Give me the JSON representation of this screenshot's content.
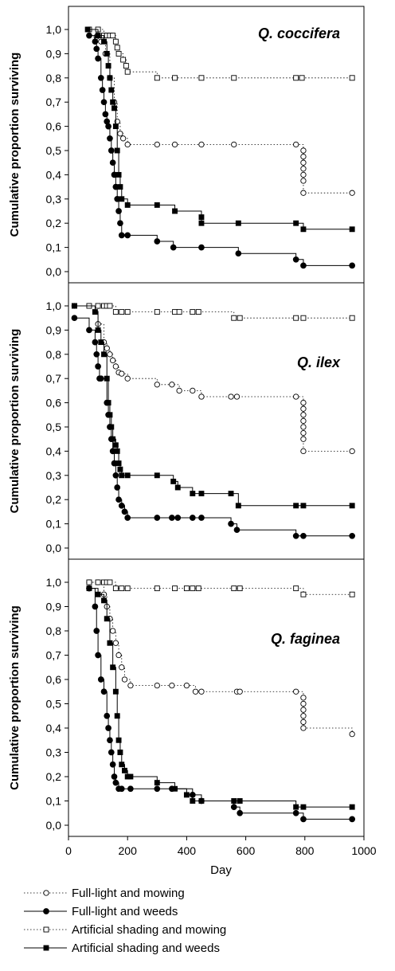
{
  "chart_data": {
    "type": "line",
    "xlabel": "Day",
    "ylabel": "Cumulative proportion surviving",
    "xlim": [
      0,
      1000
    ],
    "ylim": [
      -0.05,
      1.05
    ],
    "x_ticks": [
      "0",
      "200",
      "400",
      "600",
      "800",
      "1000"
    ],
    "y_ticks": [
      "0,0",
      "0,1",
      "0,2",
      "0,3",
      "0,4",
      "0,5",
      "0,6",
      "0,7",
      "0,8",
      "0,9",
      "1,0"
    ],
    "grid": false,
    "legend_position": "bottom",
    "legend": [
      {
        "label": "Full-light and mowing",
        "line": "dotted",
        "marker": "open-circle"
      },
      {
        "label": "Full-light and weeds",
        "line": "solid",
        "marker": "filled-circle"
      },
      {
        "label": "Artificial shading and mowing",
        "line": "dotted",
        "marker": "open-square"
      },
      {
        "label": "Artificial shading and weeds",
        "line": "solid",
        "marker": "filled-square"
      }
    ],
    "panels": [
      {
        "title": "Q. coccifera",
        "series": [
          {
            "name": "Full-light and mowing",
            "style": "dotted",
            "marker": "open-circle",
            "x": [
              70,
              95,
              110,
              125,
              140,
              155,
              165,
              175,
              185,
              200,
              300,
              360,
              450,
              560,
              770,
              795,
              795,
              795,
              795,
              795,
              795,
              795,
              960
            ],
            "y": [
              1.0,
              0.97,
              0.95,
              0.9,
              0.8,
              0.7,
              0.62,
              0.57,
              0.55,
              0.525,
              0.525,
              0.525,
              0.525,
              0.525,
              0.525,
              0.5,
              0.475,
              0.45,
              0.425,
              0.4,
              0.375,
              0.325,
              0.325
            ]
          },
          {
            "name": "Full-light and weeds",
            "style": "solid",
            "marker": "filled-circle",
            "x": [
              70,
              90,
              95,
              100,
              110,
              115,
              120,
              125,
              130,
              135,
              140,
              145,
              150,
              155,
              160,
              165,
              170,
              175,
              180,
              200,
              300,
              355,
              450,
              575,
              770,
              795,
              960
            ],
            "y": [
              0.975,
              0.95,
              0.92,
              0.88,
              0.8,
              0.75,
              0.7,
              0.65,
              0.62,
              0.6,
              0.55,
              0.5,
              0.45,
              0.4,
              0.35,
              0.3,
              0.25,
              0.2,
              0.15,
              0.15,
              0.125,
              0.1,
              0.1,
              0.075,
              0.05,
              0.025,
              0.025
            ]
          },
          {
            "name": "Artificial shading and mowing",
            "style": "dotted",
            "marker": "open-square",
            "x": [
              70,
              100,
              120,
              130,
              140,
              150,
              160,
              165,
              170,
              185,
              195,
              200,
              300,
              360,
              450,
              560,
              770,
              790,
              960
            ],
            "y": [
              1.0,
              1.0,
              0.975,
              0.975,
              0.975,
              0.975,
              0.95,
              0.925,
              0.9,
              0.875,
              0.85,
              0.825,
              0.8,
              0.8,
              0.8,
              0.8,
              0.8,
              0.8,
              0.8
            ]
          },
          {
            "name": "Artificial shading and weeds",
            "style": "solid",
            "marker": "filled-square",
            "x": [
              65,
              100,
              120,
              130,
              135,
              140,
              145,
              150,
              155,
              160,
              165,
              170,
              175,
              180,
              200,
              300,
              360,
              450,
              450,
              575,
              770,
              795,
              960
            ],
            "y": [
              1.0,
              0.975,
              0.95,
              0.9,
              0.85,
              0.8,
              0.75,
              0.7,
              0.675,
              0.6,
              0.5,
              0.4,
              0.35,
              0.3,
              0.275,
              0.275,
              0.25,
              0.225,
              0.2,
              0.2,
              0.2,
              0.175,
              0.175
            ]
          }
        ]
      },
      {
        "title": "Q. ilex",
        "series": [
          {
            "name": "Full-light and mowing",
            "style": "dotted",
            "marker": "open-circle",
            "x": [
              20,
              100,
              120,
              130,
              140,
              150,
              160,
              170,
              180,
              200,
              300,
              350,
              375,
              420,
              450,
              550,
              570,
              770,
              795,
              795,
              795,
              795,
              795,
              795,
              795,
              795,
              960
            ],
            "y": [
              1.0,
              0.925,
              0.85,
              0.825,
              0.8,
              0.775,
              0.75,
              0.725,
              0.72,
              0.7,
              0.675,
              0.675,
              0.65,
              0.65,
              0.625,
              0.625,
              0.625,
              0.625,
              0.6,
              0.575,
              0.55,
              0.525,
              0.5,
              0.475,
              0.45,
              0.4,
              0.4
            ]
          },
          {
            "name": "Full-light and weeds",
            "style": "solid",
            "marker": "filled-circle",
            "x": [
              20,
              70,
              90,
              95,
              100,
              105,
              110,
              130,
              135,
              140,
              145,
              150,
              155,
              160,
              165,
              170,
              180,
              190,
              200,
              300,
              350,
              370,
              420,
              450,
              550,
              570,
              770,
              795,
              960
            ],
            "y": [
              0.95,
              0.9,
              0.85,
              0.8,
              0.75,
              0.7,
              0.7,
              0.6,
              0.55,
              0.5,
              0.45,
              0.4,
              0.35,
              0.3,
              0.25,
              0.2,
              0.175,
              0.15,
              0.125,
              0.125,
              0.125,
              0.125,
              0.125,
              0.125,
              0.1,
              0.075,
              0.05,
              0.05,
              0.05
            ]
          },
          {
            "name": "Artificial shading and mowing",
            "style": "dotted",
            "marker": "open-square",
            "x": [
              20,
              70,
              100,
              120,
              130,
              140,
              160,
              180,
              200,
              300,
              360,
              375,
              420,
              440,
              560,
              580,
              770,
              795,
              960
            ],
            "y": [
              1.0,
              1.0,
              1.0,
              1.0,
              1.0,
              1.0,
              0.975,
              0.975,
              0.975,
              0.975,
              0.975,
              0.975,
              0.975,
              0.975,
              0.95,
              0.95,
              0.95,
              0.95,
              0.95
            ]
          },
          {
            "name": "Artificial shading and weeds",
            "style": "solid",
            "marker": "filled-square",
            "x": [
              20,
              90,
              100,
              110,
              120,
              130,
              135,
              140,
              145,
              150,
              160,
              165,
              170,
              175,
              180,
              200,
              300,
              355,
              370,
              420,
              450,
              550,
              575,
              770,
              795,
              960
            ],
            "y": [
              1.0,
              0.975,
              0.9,
              0.85,
              0.8,
              0.7,
              0.6,
              0.55,
              0.5,
              0.45,
              0.425,
              0.4,
              0.35,
              0.325,
              0.3,
              0.3,
              0.3,
              0.275,
              0.25,
              0.225,
              0.225,
              0.225,
              0.175,
              0.175,
              0.175,
              0.175
            ]
          }
        ]
      },
      {
        "title": "Q. faginea",
        "series": [
          {
            "name": "Full-light and mowing",
            "style": "dotted",
            "marker": "open-circle",
            "x": [
              70,
              100,
              120,
              130,
              140,
              150,
              160,
              170,
              180,
              190,
              210,
              300,
              350,
              400,
              430,
              450,
              570,
              580,
              770,
              795,
              795,
              795,
              795,
              795,
              795,
              960
            ],
            "y": [
              1.0,
              1.0,
              0.95,
              0.9,
              0.85,
              0.8,
              0.75,
              0.7,
              0.65,
              0.6,
              0.575,
              0.575,
              0.575,
              0.575,
              0.55,
              0.55,
              0.55,
              0.55,
              0.55,
              0.525,
              0.5,
              0.475,
              0.45,
              0.425,
              0.4,
              0.375
            ]
          },
          {
            "name": "Full-light and weeds",
            "style": "solid",
            "marker": "filled-circle",
            "x": [
              70,
              90,
              95,
              100,
              110,
              120,
              130,
              135,
              140,
              145,
              150,
              155,
              160,
              170,
              180,
              210,
              300,
              350,
              420,
              450,
              560,
              580,
              770,
              795,
              960
            ],
            "y": [
              0.975,
              0.9,
              0.8,
              0.7,
              0.6,
              0.55,
              0.45,
              0.4,
              0.35,
              0.3,
              0.25,
              0.2,
              0.175,
              0.15,
              0.15,
              0.15,
              0.15,
              0.15,
              0.125,
              0.1,
              0.075,
              0.05,
              0.05,
              0.025,
              0.025
            ]
          },
          {
            "name": "Artificial shading and mowing",
            "style": "dotted",
            "marker": "open-square",
            "x": [
              70,
              100,
              120,
              130,
              140,
              160,
              180,
              200,
              300,
              360,
              400,
              420,
              440,
              560,
              580,
              770,
              795,
              960
            ],
            "y": [
              1.0,
              1.0,
              1.0,
              1.0,
              1.0,
              0.975,
              0.975,
              0.975,
              0.975,
              0.975,
              0.975,
              0.975,
              0.975,
              0.975,
              0.975,
              0.975,
              0.95,
              0.95
            ]
          },
          {
            "name": "Artificial shading and weeds",
            "style": "solid",
            "marker": "filled-square",
            "x": [
              70,
              100,
              120,
              130,
              140,
              150,
              160,
              165,
              170,
              175,
              180,
              190,
              200,
              210,
              300,
              360,
              400,
              420,
              450,
              560,
              580,
              770,
              795,
              960
            ],
            "y": [
              0.975,
              0.95,
              0.925,
              0.85,
              0.75,
              0.65,
              0.55,
              0.45,
              0.35,
              0.3,
              0.25,
              0.225,
              0.2,
              0.2,
              0.175,
              0.15,
              0.125,
              0.1,
              0.1,
              0.1,
              0.1,
              0.075,
              0.075,
              0.075
            ]
          }
        ]
      }
    ]
  }
}
